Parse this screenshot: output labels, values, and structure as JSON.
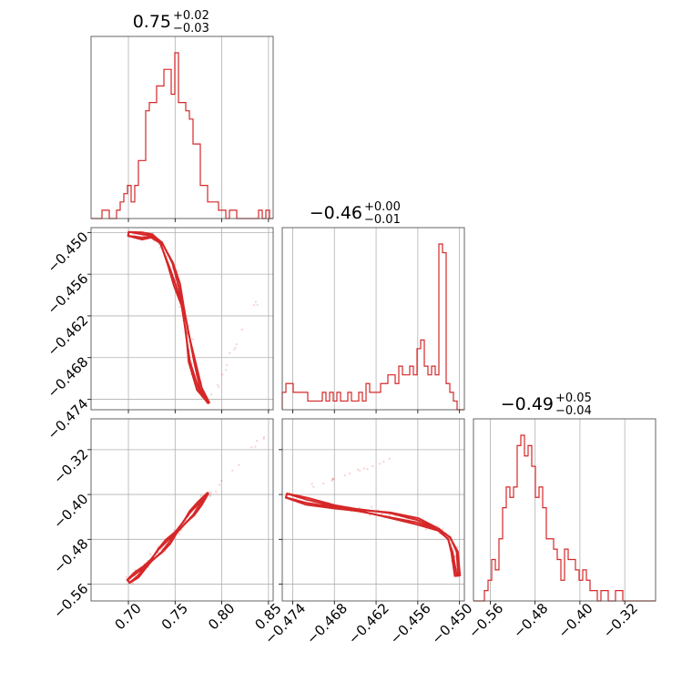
{
  "chart_data": {
    "type": "corner",
    "color": "#d62728",
    "grid": true,
    "parameters": [
      {
        "title": {
          "median": "0.75",
          "plus": "+0.02",
          "minus": "−0.03"
        },
        "range": [
          0.66,
          0.855
        ],
        "ticks": [
          0.7,
          0.75,
          0.8,
          0.85
        ],
        "tick_labels": [
          "0.70",
          "0.75",
          "0.80",
          "0.85"
        ]
      },
      {
        "title": {
          "median": "−0.46",
          "plus": "+0.00",
          "minus": "−0.01"
        },
        "range": [
          -0.4755,
          -0.4493
        ],
        "ticks": [
          -0.474,
          -0.468,
          -0.462,
          -0.456,
          -0.45
        ],
        "tick_labels": [
          "−0.474",
          "−0.468",
          "−0.462",
          "−0.456",
          "−0.450"
        ]
      },
      {
        "title": {
          "median": "−0.49",
          "plus": "+0.05",
          "minus": "−0.04"
        },
        "range": [
          -0.59,
          -0.265
        ],
        "ticks": [
          -0.56,
          -0.48,
          -0.4,
          -0.32
        ],
        "tick_labels": [
          "−0.56",
          "−0.48",
          "−0.40",
          "−0.32"
        ]
      }
    ],
    "histograms": [
      {
        "edges_range": [
          0.66,
          0.855
        ],
        "counts": [
          0,
          0,
          0,
          1,
          1,
          0,
          0,
          1,
          2,
          3,
          4,
          2,
          4,
          7,
          7,
          13,
          14,
          14,
          16,
          16,
          18,
          18,
          15,
          20,
          14,
          14,
          13,
          12,
          9,
          9,
          4,
          4,
          2,
          2,
          2,
          1,
          1,
          0,
          1,
          1,
          0,
          0,
          0,
          0,
          0,
          0,
          1,
          0,
          1,
          0
        ]
      },
      {
        "edges_range": [
          -0.4755,
          -0.4493
        ],
        "counts": [
          2,
          3,
          3,
          2,
          2,
          2,
          2,
          1,
          1,
          1,
          1,
          2,
          1,
          2,
          1,
          2,
          1,
          1,
          2,
          1,
          1,
          2,
          1,
          3,
          2,
          2,
          2,
          3,
          3,
          4,
          4,
          3,
          5,
          4,
          4,
          5,
          4,
          7,
          8,
          5,
          4,
          5,
          4,
          19,
          18,
          3,
          2,
          1,
          0,
          0
        ]
      },
      {
        "edges_range": [
          -0.59,
          -0.265
        ],
        "counts": [
          0,
          0,
          0,
          1,
          2,
          4,
          3,
          6,
          9,
          11,
          10,
          11,
          15,
          16,
          14,
          15,
          13,
          10,
          11,
          9,
          6,
          6,
          5,
          4,
          2,
          5,
          4,
          4,
          3,
          2,
          3,
          2,
          1,
          1,
          0,
          1,
          1,
          0,
          0,
          1,
          1,
          0,
          0,
          0,
          0,
          0,
          0,
          0,
          0,
          0
        ]
      }
    ],
    "relation": {
      "description_points_p1_p2": [
        [
          0.7,
          -0.4502
        ],
        [
          0.715,
          -0.4505
        ],
        [
          0.725,
          -0.4505
        ],
        [
          0.735,
          -0.4515
        ],
        [
          0.745,
          -0.4545
        ],
        [
          0.752,
          -0.4575
        ],
        [
          0.758,
          -0.4605
        ],
        [
          0.763,
          -0.4645
        ],
        [
          0.768,
          -0.4685
        ],
        [
          0.776,
          -0.4725
        ],
        [
          0.786,
          -0.4745
        ]
      ],
      "description_points_p2_p3": [
        [
          -0.4749,
          -0.402
        ],
        [
          -0.472,
          -0.412
        ],
        [
          -0.468,
          -0.422
        ],
        [
          -0.464,
          -0.429
        ],
        [
          -0.46,
          -0.437
        ],
        [
          -0.456,
          -0.448
        ],
        [
          -0.453,
          -0.463
        ],
        [
          -0.4515,
          -0.478
        ],
        [
          -0.4507,
          -0.503
        ],
        [
          -0.4503,
          -0.545
        ]
      ]
    }
  }
}
